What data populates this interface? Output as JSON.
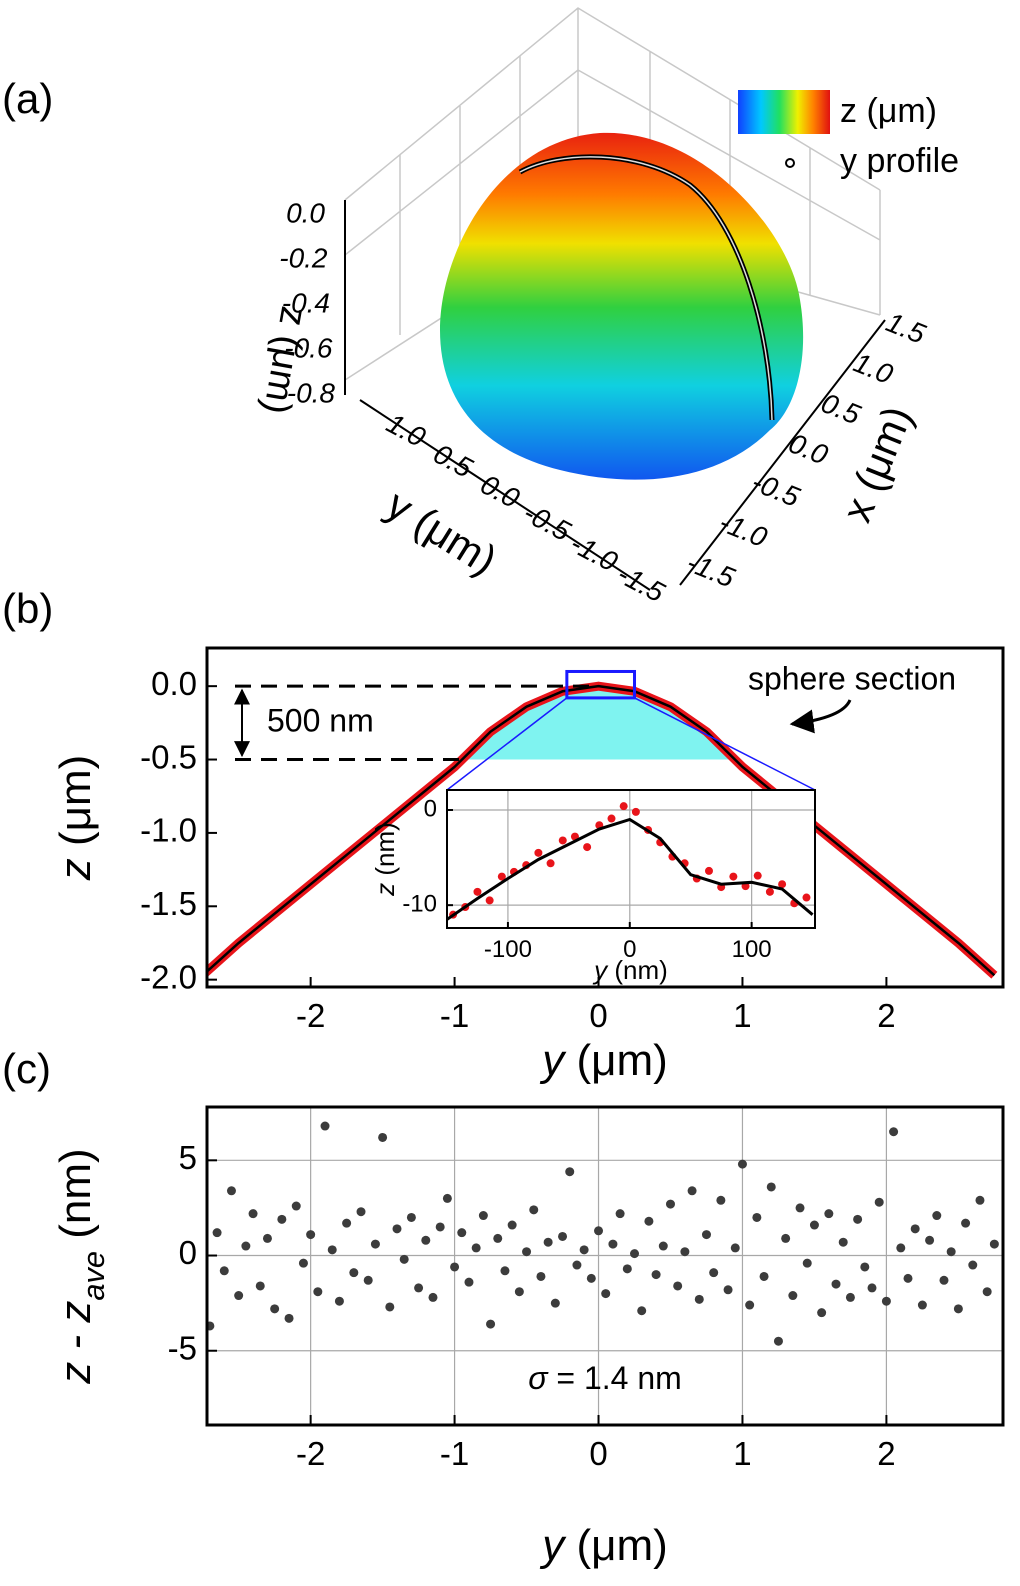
{
  "chart_data": [
    {
      "type": "surface3d",
      "panel_label": "(a)",
      "zlabel": "z (μm)",
      "ylabel": "y (μm)",
      "xlabel": "x (μm)",
      "zticks": [
        {
          "value": 0,
          "label": "0.0"
        },
        -0.2,
        -0.4,
        -0.6,
        -0.8
      ],
      "yticks": [
        {
          "value": 1,
          "label": "1.0"
        },
        0.5,
        {
          "value": 0,
          "label": "0.0"
        },
        -0.5,
        {
          "value": -1,
          "label": "-1.0"
        },
        -1.5
      ],
      "xticks": [
        1.5,
        {
          "value": 1,
          "label": "1.0"
        },
        0.5,
        {
          "value": 0,
          "label": "0.0"
        },
        -0.5,
        {
          "value": -1,
          "label": "-1.0"
        },
        -1.5
      ],
      "colorbar_label": "z (μm)",
      "profile_label": "y profile",
      "profile_color": "#000000"
    },
    {
      "type": "line",
      "panel_label": "(b)",
      "xlabel": [
        "y",
        " (μm)"
      ],
      "ylabel": [
        "z",
        " (μm)"
      ],
      "xlim": [
        -2.72,
        2.81
      ],
      "ylim": [
        -2.05,
        0.26
      ],
      "xticks": [
        -2,
        -1,
        0,
        1,
        2
      ],
      "yticks": [
        {
          "value": -2,
          "label": "-2.0"
        },
        -1.5,
        {
          "value": -1,
          "label": "-1.0"
        },
        -0.5,
        {
          "value": 0,
          "label": "0.0"
        }
      ],
      "x": [
        -2.75,
        -2.5,
        -2.25,
        -2,
        -1.75,
        -1.5,
        -1.25,
        -1,
        -0.75,
        -0.5,
        -0.25,
        0,
        0.25,
        0.5,
        0.75,
        1,
        1.25,
        1.5,
        1.75,
        2,
        2.25,
        2.5,
        2.75
      ],
      "series": [
        {
          "color": "#e8141a",
          "values": [
            -1.97,
            -1.75,
            -1.55,
            -1.35,
            -1.15,
            -0.95,
            -0.75,
            -0.55,
            -0.31,
            -0.14,
            -0.035,
            0,
            -0.035,
            -0.14,
            -0.31,
            -0.55,
            -0.75,
            -0.95,
            -1.15,
            -1.35,
            -1.55,
            -1.75,
            -1.97
          ]
        },
        {
          "color": "#000000",
          "values": [
            -1.97,
            -1.75,
            -1.55,
            -1.35,
            -1.15,
            -0.95,
            -0.75,
            -0.55,
            -0.31,
            -0.14,
            -0.035,
            0,
            -0.035,
            -0.14,
            -0.31,
            -0.55,
            -0.75,
            -0.95,
            -1.15,
            -1.35,
            -1.55,
            -1.75,
            -1.97
          ]
        }
      ],
      "hlines": [
        0,
        -0.5
      ],
      "section_color": "#7ff3f0",
      "annotations": [
        "sphere section",
        "500 nm"
      ],
      "zoom_box": {
        "x": [
          -0.22,
          0.25
        ],
        "y": [
          -0.08,
          0.1
        ],
        "color": "#1a1aff"
      },
      "inset": {
        "type": "scatter",
        "xlabel": [
          "y",
          " (nm)"
        ],
        "ylabel": [
          "z",
          " (nm)"
        ],
        "xlim": [
          -150,
          152
        ],
        "ylim": [
          -12.4,
          2.1
        ],
        "xticks": [
          -100,
          0,
          100
        ],
        "yticks": [
          -10,
          0
        ],
        "grid": true,
        "x": [
          -145,
          -135,
          -125,
          -115,
          -105,
          -95,
          -85,
          -75,
          -65,
          -55,
          -45,
          -35,
          -25,
          -15,
          -5,
          5,
          15,
          25,
          35,
          45,
          55,
          65,
          75,
          85,
          95,
          105,
          115,
          125,
          135,
          145
        ],
        "values": [
          -11,
          -10.2,
          -8.6,
          -9.5,
          -7,
          -6.5,
          -5.8,
          -4.5,
          -5.6,
          -3.2,
          -2.8,
          -3.9,
          -1.6,
          -0.9,
          0.4,
          -0.2,
          -2.1,
          -3.4,
          -4.9,
          -5.6,
          -7.2,
          -6.4,
          -8.1,
          -7,
          -8,
          -6.9,
          -8.6,
          -7.8,
          -9.8,
          -9.2
        ],
        "color": "#e8141a",
        "fit": {
          "x": [
            -150,
            -125,
            -100,
            -75,
            -50,
            -25,
            0,
            25,
            50,
            75,
            100,
            125,
            150
          ],
          "values": [
            -11.5,
            -9.3,
            -7.2,
            -5.2,
            -3.6,
            -2,
            -1,
            -3,
            -6.8,
            -7.8,
            -7.6,
            -8.3,
            -11
          ],
          "color": "#000000"
        }
      }
    },
    {
      "type": "scatter",
      "panel_label": "(c)",
      "xlabel": [
        "y",
        " (μm)"
      ],
      "ylabel": [
        "z - z",
        "ave",
        " (nm)"
      ],
      "xlim": [
        -2.72,
        2.81
      ],
      "ylim": [
        -8.9,
        7.8
      ],
      "xticks": [
        -2,
        -1,
        0,
        1,
        2
      ],
      "yticks": [
        -5,
        0,
        5
      ],
      "grid": true,
      "color": "#3c3c3c",
      "annotation": [
        "σ",
        " = 1.4 nm"
      ],
      "x": [
        -2.7,
        -2.65,
        -2.6,
        -2.55,
        -2.5,
        -2.45,
        -2.4,
        -2.35,
        -2.3,
        -2.25,
        -2.2,
        -2.15,
        -2.1,
        -2.05,
        -2,
        -1.95,
        -1.9,
        -1.85,
        -1.8,
        -1.75,
        -1.7,
        -1.65,
        -1.6,
        -1.55,
        -1.5,
        -1.45,
        -1.4,
        -1.35,
        -1.3,
        -1.25,
        -1.2,
        -1.15,
        -1.1,
        -1.05,
        -1,
        -0.95,
        -0.9,
        -0.85,
        -0.8,
        -0.75,
        -0.7,
        -0.65,
        -0.6,
        -0.55,
        -0.5,
        -0.45,
        -0.4,
        -0.35,
        -0.3,
        -0.25,
        -0.2,
        -0.15,
        -0.1,
        -0.05,
        0,
        0.05,
        0.1,
        0.15,
        0.2,
        0.25,
        0.3,
        0.35,
        0.4,
        0.45,
        0.5,
        0.55,
        0.6,
        0.65,
        0.7,
        0.75,
        0.8,
        0.85,
        0.9,
        0.95,
        1,
        1.05,
        1.1,
        1.15,
        1.2,
        1.25,
        1.3,
        1.35,
        1.4,
        1.45,
        1.5,
        1.55,
        1.6,
        1.65,
        1.7,
        1.75,
        1.8,
        1.85,
        1.9,
        1.95,
        2,
        2.05,
        2.1,
        2.15,
        2.2,
        2.25,
        2.3,
        2.35,
        2.4,
        2.45,
        2.5,
        2.55,
        2.6,
        2.65,
        2.7,
        2.75
      ],
      "values": [
        -3.7,
        1.2,
        -0.8,
        3.4,
        -2.1,
        0.5,
        2.2,
        -1.6,
        0.9,
        -2.8,
        1.9,
        -3.3,
        2.6,
        -0.4,
        1.1,
        -1.9,
        6.8,
        0.3,
        -2.4,
        1.7,
        -0.9,
        2.3,
        -1.3,
        0.6,
        6.2,
        -2.7,
        1.4,
        -0.2,
        2.0,
        -1.7,
        0.8,
        -2.2,
        1.5,
        3.0,
        -0.6,
        1.2,
        -1.4,
        0.4,
        2.1,
        -3.6,
        0.9,
        -0.8,
        1.6,
        -1.9,
        0.2,
        2.4,
        -1.1,
        0.7,
        -2.5,
        1.0,
        4.4,
        -0.5,
        0.3,
        -1.2,
        1.3,
        -2.0,
        0.6,
        2.2,
        -0.7,
        0.1,
        -2.9,
        1.8,
        -1.0,
        0.5,
        2.7,
        -1.6,
        0.2,
        3.4,
        -2.3,
        1.1,
        -0.9,
        2.9,
        -1.8,
        0.4,
        4.8,
        -2.6,
        2.0,
        -1.1,
        3.6,
        -4.5,
        0.9,
        -2.1,
        2.5,
        -0.4,
        1.6,
        -3.0,
        2.2,
        -1.5,
        0.7,
        -2.2,
        1.9,
        -0.6,
        -1.7,
        2.8,
        -2.4,
        6.5,
        0.4,
        -1.2,
        1.4,
        -2.6,
        0.8,
        2.1,
        -1.3,
        0.2,
        -2.8,
        1.7,
        -0.5,
        2.9,
        -1.9,
        0.6
      ]
    }
  ]
}
